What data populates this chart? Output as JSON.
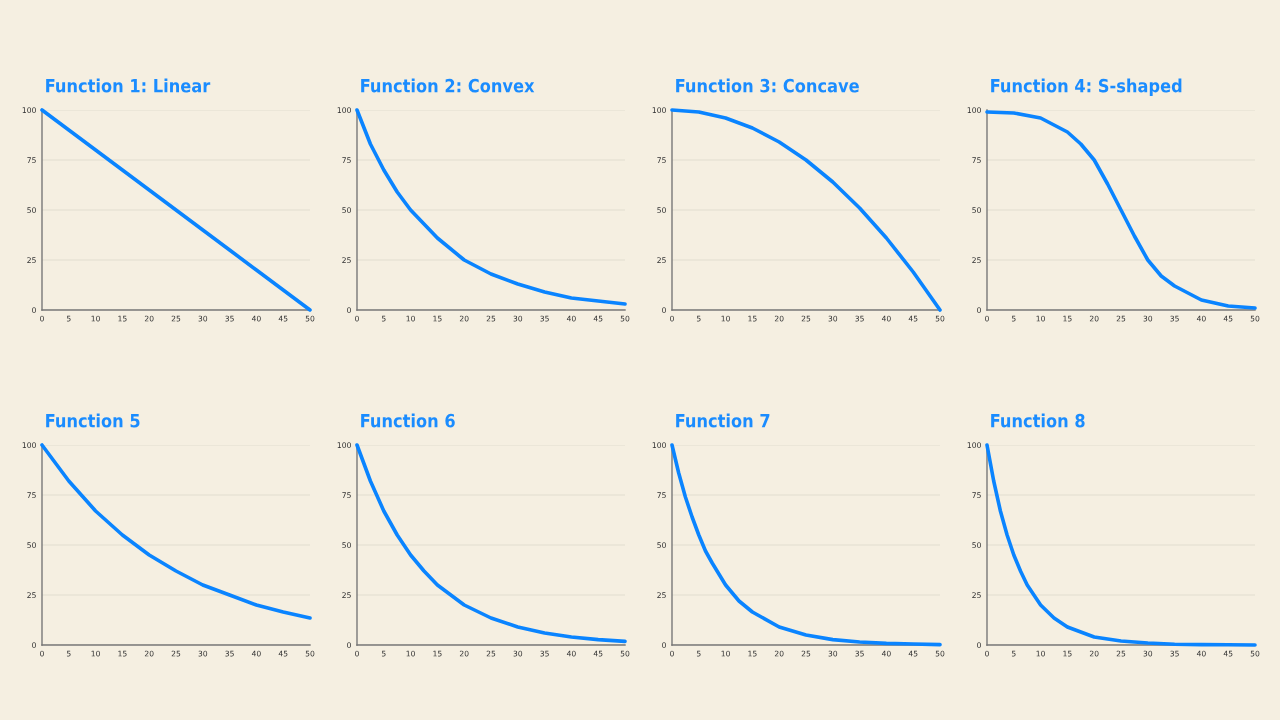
{
  "chart_data": [
    {
      "type": "line",
      "title": "Function 1: Linear",
      "x": [
        0,
        5,
        10,
        15,
        20,
        25,
        30,
        35,
        40,
        45,
        50
      ],
      "series": [
        {
          "color": "#0a84ff",
          "values": [
            100,
            90,
            80,
            70,
            60,
            50,
            40,
            30,
            20,
            10,
            0
          ]
        }
      ],
      "xlim": [
        0,
        50
      ],
      "xticks": [
        0,
        5,
        10,
        15,
        20,
        25,
        30,
        35,
        40,
        45,
        50
      ],
      "ylim": [
        0,
        100
      ],
      "yticks": [
        0,
        25,
        50,
        75,
        100
      ],
      "grid": "y"
    },
    {
      "type": "line",
      "title": "Function 2: Convex",
      "x": [
        0,
        2.5,
        5,
        7.5,
        10,
        15,
        20,
        25,
        30,
        35,
        40,
        45,
        50
      ],
      "series": [
        {
          "color": "#0a84ff",
          "values": [
            100,
            83,
            70,
            59,
            50,
            36,
            25,
            18,
            13,
            9,
            6,
            4.5,
            3
          ]
        }
      ],
      "xlim": [
        0,
        50
      ],
      "xticks": [
        0,
        5,
        10,
        15,
        20,
        25,
        30,
        35,
        40,
        45,
        50
      ],
      "ylim": [
        0,
        100
      ],
      "yticks": [
        0,
        25,
        50,
        75,
        100
      ],
      "grid": "y"
    },
    {
      "type": "line",
      "title": "Function 3: Concave",
      "x": [
        0,
        5,
        10,
        15,
        20,
        25,
        30,
        35,
        40,
        45,
        50
      ],
      "series": [
        {
          "color": "#0a84ff",
          "values": [
            100,
            99,
            96,
            91,
            84,
            75,
            64,
            51,
            36,
            19,
            0
          ]
        }
      ],
      "xlim": [
        0,
        50
      ],
      "xticks": [
        0,
        5,
        10,
        15,
        20,
        25,
        30,
        35,
        40,
        45,
        50
      ],
      "ylim": [
        0,
        100
      ],
      "yticks": [
        0,
        25,
        50,
        75,
        100
      ],
      "grid": "y"
    },
    {
      "type": "line",
      "title": "Function 4: S-shaped",
      "x": [
        0,
        5,
        10,
        15,
        17.5,
        20,
        22.5,
        25,
        27.5,
        30,
        32.5,
        35,
        40,
        45,
        50
      ],
      "series": [
        {
          "color": "#0a84ff",
          "values": [
            99,
            98.5,
            96,
            89,
            83,
            75,
            63,
            50,
            37,
            25,
            17,
            12,
            5,
            2,
            1
          ]
        }
      ],
      "xlim": [
        0,
        50
      ],
      "xticks": [
        0,
        5,
        10,
        15,
        20,
        25,
        30,
        35,
        40,
        45,
        50
      ],
      "ylim": [
        0,
        100
      ],
      "yticks": [
        0,
        25,
        50,
        75,
        100
      ],
      "grid": "y"
    },
    {
      "type": "line",
      "title": "Function 5",
      "x": [
        0,
        5,
        10,
        15,
        20,
        25,
        30,
        35,
        40,
        45,
        50
      ],
      "series": [
        {
          "color": "#0a84ff",
          "values": [
            100,
            82,
            67,
            55,
            45,
            37,
            30,
            25,
            20,
            16.5,
            13.5
          ]
        }
      ],
      "xlim": [
        0,
        50
      ],
      "xticks": [
        0,
        5,
        10,
        15,
        20,
        25,
        30,
        35,
        40,
        45,
        50
      ],
      "ylim": [
        0,
        100
      ],
      "yticks": [
        0,
        25,
        50,
        75,
        100
      ],
      "grid": "y"
    },
    {
      "type": "line",
      "title": "Function 6",
      "x": [
        0,
        2.5,
        5,
        7.5,
        10,
        12.5,
        15,
        20,
        25,
        30,
        35,
        40,
        45,
        50
      ],
      "series": [
        {
          "color": "#0a84ff",
          "values": [
            100,
            82,
            67,
            55,
            45,
            37,
            30,
            20,
            13.5,
            9,
            6,
            4,
            2.7,
            1.8
          ]
        }
      ],
      "xlim": [
        0,
        50
      ],
      "xticks": [
        0,
        5,
        10,
        15,
        20,
        25,
        30,
        35,
        40,
        45,
        50
      ],
      "ylim": [
        0,
        100
      ],
      "yticks": [
        0,
        25,
        50,
        75,
        100
      ],
      "grid": "y"
    },
    {
      "type": "line",
      "title": "Function 7",
      "x": [
        0,
        1.25,
        2.5,
        3.75,
        5,
        6.25,
        7.5,
        10,
        12.5,
        15,
        20,
        25,
        30,
        35,
        40,
        45,
        50
      ],
      "series": [
        {
          "color": "#0a84ff",
          "values": [
            100,
            86,
            74,
            64,
            55,
            47,
            41,
            30,
            22,
            16.5,
            9,
            5,
            2.7,
            1.5,
            0.8,
            0.5,
            0.2
          ]
        }
      ],
      "xlim": [
        0,
        50
      ],
      "xticks": [
        0,
        5,
        10,
        15,
        20,
        25,
        30,
        35,
        40,
        45,
        50
      ],
      "ylim": [
        0,
        100
      ],
      "yticks": [
        0,
        25,
        50,
        75,
        100
      ],
      "grid": "y"
    },
    {
      "type": "line",
      "title": "Function 8",
      "x": [
        0,
        1.25,
        2.5,
        3.75,
        5,
        6.25,
        7.5,
        10,
        12.5,
        15,
        20,
        25,
        30,
        35,
        40,
        45,
        50
      ],
      "series": [
        {
          "color": "#0a84ff",
          "values": [
            100,
            82,
            67,
            55,
            45,
            37,
            30,
            20,
            13.5,
            9,
            4,
            2,
            1,
            0.4,
            0.2,
            0.1,
            0
          ]
        }
      ],
      "xlim": [
        0,
        50
      ],
      "xticks": [
        0,
        5,
        10,
        15,
        20,
        25,
        30,
        35,
        40,
        45,
        50
      ],
      "ylim": [
        0,
        100
      ],
      "yticks": [
        0,
        25,
        50,
        75,
        100
      ],
      "grid": "y"
    }
  ]
}
